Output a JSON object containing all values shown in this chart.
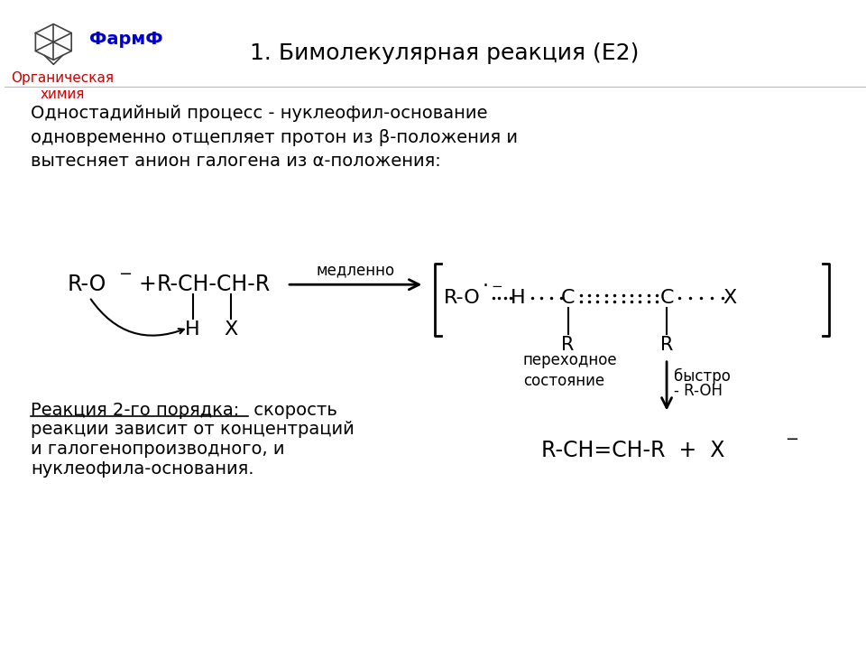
{
  "title": "1. Бимолекулярная реакция (Е2)",
  "bg_color": "#ffffff",
  "text_color": "#000000",
  "blue_color": "#0000cc",
  "red_color": "#cc0000",
  "logo_text1": "ФармФ",
  "logo_text2": "Органическая\nхимия",
  "description": "Одностадийный процесс - нуклеофил-основание\nодновременно отщепляет протон из β-положения и\nвытесняет анион галогена из α-положения:",
  "bottom_left_underlined": "Реакция 2-го порядка:",
  "bottom_left_rest": " скорость\nреакции зависит от концентраций\nи галогенопроизводного, и\nнуклеофила-основания."
}
